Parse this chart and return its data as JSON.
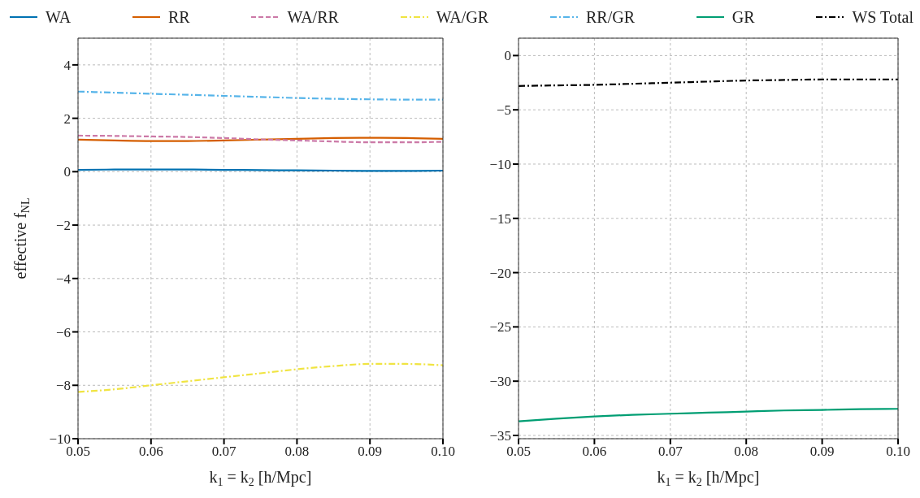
{
  "chart_data": [
    {
      "type": "line",
      "xlabel": "k$_{1}$ = k$_{2}$ [h/Mpc]",
      "ylabel": "effective f$_{NL}$",
      "x": [
        0.05,
        0.055,
        0.06,
        0.065,
        0.07,
        0.075,
        0.08,
        0.085,
        0.09,
        0.095,
        0.1
      ],
      "xlim": [
        0.05,
        0.1
      ],
      "xticks": [
        0.05,
        0.06,
        0.07,
        0.08,
        0.09,
        {
          "value": 0.1,
          "label": "0.10"
        }
      ],
      "ylim": [
        -10,
        5
      ],
      "yticks": [
        -10,
        -8,
        -6,
        -4,
        -2,
        0,
        2,
        4
      ],
      "grid": true,
      "legend": "top",
      "series": [
        {
          "name": "WA",
          "color": "#0072b2",
          "line_style": "solid",
          "values": [
            0.07,
            0.08,
            0.08,
            0.08,
            0.07,
            0.06,
            0.05,
            0.04,
            0.03,
            0.03,
            0.04
          ]
        },
        {
          "name": "RR",
          "color": "#d55e00",
          "line_style": "solid",
          "values": [
            1.2,
            1.17,
            1.15,
            1.15,
            1.17,
            1.2,
            1.23,
            1.26,
            1.27,
            1.26,
            1.23
          ]
        },
        {
          "name": "WA/RR",
          "color": "#cc79a7",
          "line_style": "dashed",
          "values": [
            1.35,
            1.34,
            1.32,
            1.3,
            1.26,
            1.21,
            1.17,
            1.13,
            1.1,
            1.1,
            1.12
          ]
        },
        {
          "name": "WA/GR",
          "color": "#f0e442",
          "line_style": "dashdot",
          "values": [
            -8.25,
            -8.15,
            -8.0,
            -7.85,
            -7.7,
            -7.55,
            -7.4,
            -7.28,
            -7.2,
            -7.2,
            -7.25
          ]
        },
        {
          "name": "RR/GR",
          "color": "#56b4e9",
          "line_style": "dashdot",
          "values": [
            3.0,
            2.96,
            2.92,
            2.88,
            2.84,
            2.8,
            2.76,
            2.73,
            2.71,
            2.7,
            2.7
          ]
        }
      ]
    },
    {
      "type": "line",
      "xlabel": "k$_{1}$ = k$_{2}$ [h/Mpc]",
      "x": [
        0.05,
        0.055,
        0.06,
        0.065,
        0.07,
        0.075,
        0.08,
        0.085,
        0.09,
        0.095,
        0.1
      ],
      "xlim": [
        0.05,
        0.1
      ],
      "xticks": [
        0.05,
        0.06,
        0.07,
        0.08,
        0.09,
        {
          "value": 0.1,
          "label": "0.10"
        }
      ],
      "ylim": [
        -35.3,
        1.6
      ],
      "yticks": [
        -35,
        -30,
        -25,
        -20,
        -15,
        -10,
        -5,
        0
      ],
      "grid": true,
      "legend": "top",
      "series": [
        {
          "name": "GR",
          "color": "#009e73",
          "line_style": "solid",
          "values": [
            -33.7,
            -33.45,
            -33.25,
            -33.1,
            -33.0,
            -32.9,
            -32.8,
            -32.7,
            -32.65,
            -32.58,
            -32.55
          ]
        },
        {
          "name": "WS Total",
          "color": "#000000",
          "line_style": "dashdot",
          "values": [
            -2.8,
            -2.75,
            -2.7,
            -2.6,
            -2.5,
            -2.4,
            -2.3,
            -2.25,
            -2.2,
            -2.2,
            -2.2
          ]
        }
      ]
    }
  ]
}
